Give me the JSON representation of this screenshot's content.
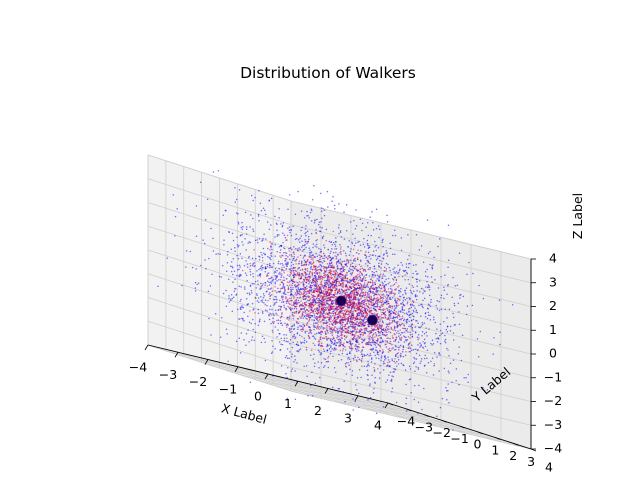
{
  "chart_data": {
    "type": "scatter",
    "projection": "3d",
    "title": "Distribution of Walkers",
    "xlabel": "X Label",
    "ylabel": "Y Label",
    "zlabel": "Z Label",
    "xlim": [
      -4,
      4
    ],
    "ylim": [
      -4,
      4
    ],
    "zlim": [
      -4,
      4
    ],
    "xticks": [
      "−4",
      "−3",
      "−2",
      "−1",
      "0",
      "1",
      "2",
      "3",
      "4"
    ],
    "yticks": [
      "−4",
      "−3",
      "−2",
      "−1",
      "0",
      "1",
      "2",
      "3",
      "4"
    ],
    "zticks": [
      "−4",
      "−3",
      "−2",
      "−1",
      "0",
      "1",
      "2",
      "3",
      "4"
    ],
    "grid": true,
    "series": [
      {
        "marker": "dot",
        "color": "#0000ff",
        "count": 3000,
        "distribution": "gaussian",
        "sigma": 1.6,
        "center": [
          0,
          0,
          0
        ]
      },
      {
        "marker": "dot",
        "color": "#cc0044",
        "count": 2000,
        "distribution": "gaussian",
        "sigma": 0.9,
        "center": [
          0,
          0,
          0
        ]
      }
    ],
    "highlight_points": [
      {
        "x": -0.3,
        "y": 0.6,
        "z": 0.1,
        "color": "#1a0055"
      },
      {
        "x": 0.8,
        "y": 0.5,
        "z": -0.4,
        "color": "#1a0055"
      }
    ]
  }
}
